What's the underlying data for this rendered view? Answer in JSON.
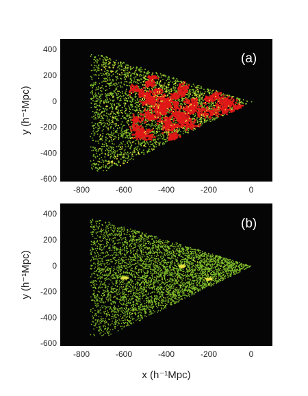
{
  "colors": {
    "background": "#050505",
    "galaxy_green": "#7fbf2a",
    "galaxy_yellow": "#e8e040",
    "structure_red": "#e01818",
    "frame": "#000000"
  },
  "chart_data": [
    {
      "type": "scatter",
      "panel_label": "(a)",
      "ylabel": "y (h⁻¹Mpc)",
      "xlim": [
        -900,
        100
      ],
      "ylim": [
        -620,
        480
      ],
      "xticks": [
        -800,
        -600,
        -400,
        -200,
        0
      ],
      "xtick_labels": [
        "-800",
        "-600",
        "-400",
        "-200",
        "0"
      ],
      "yticks": [
        400,
        200,
        0,
        -200,
        -400,
        -600
      ],
      "ytick_labels": [
        "400",
        "200",
        "0",
        "-200",
        "-400",
        "-600"
      ],
      "grid": false,
      "wedge": {
        "apex": [
          0,
          0
        ],
        "far_edge": [
          [
            -750,
            380
          ],
          [
            -650,
            -520
          ]
        ]
      },
      "series": [
        {
          "color_key": "galaxy_green",
          "description": "field points"
        },
        {
          "color_key": "galaxy_yellow",
          "description": "filament points"
        },
        {
          "color_key": "structure_red",
          "description": "dense cluster regions",
          "x_range": [
            -560,
            -40
          ]
        }
      ]
    },
    {
      "type": "scatter",
      "panel_label": "(b)",
      "xlabel": "x (h⁻¹Mpc)",
      "ylabel": "y (h⁻¹Mpc)",
      "xlim": [
        -900,
        100
      ],
      "ylim": [
        -620,
        480
      ],
      "xticks": [
        -800,
        -600,
        -400,
        -200,
        0
      ],
      "xtick_labels": [
        "-800",
        "-600",
        "-400",
        "-200",
        "0"
      ],
      "yticks": [
        400,
        200,
        0,
        -200,
        -400,
        -600
      ],
      "ytick_labels": [
        "400",
        "200",
        "0",
        "-200",
        "-400",
        "-600"
      ],
      "grid": false,
      "wedge": {
        "apex": [
          0,
          0
        ],
        "far_edge": [
          [
            -750,
            380
          ],
          [
            -650,
            -520
          ]
        ]
      },
      "series": [
        {
          "color_key": "galaxy_green",
          "description": "uniform field points"
        },
        {
          "color_key": "galaxy_yellow",
          "description": "small clumps",
          "centers": [
            [
              -330,
              0
            ],
            [
              -200,
              -100
            ],
            [
              -600,
              -90
            ]
          ]
        }
      ]
    }
  ]
}
